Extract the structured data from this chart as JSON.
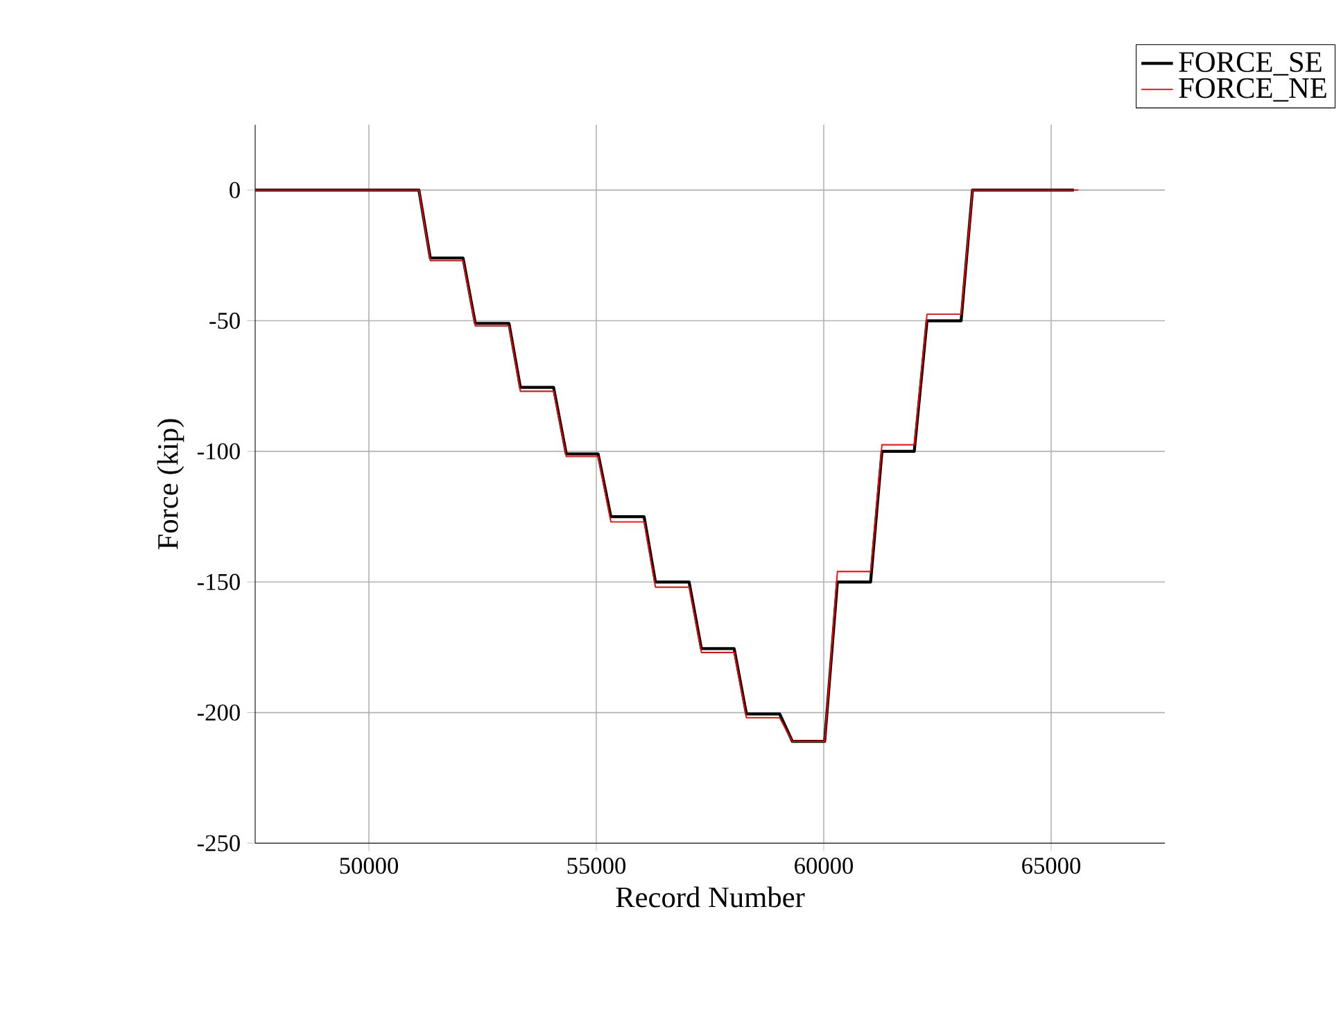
{
  "chart_data": {
    "type": "line",
    "xlabel": "Record Number",
    "ylabel": "Force (kip)",
    "xlim": [
      47500,
      67500
    ],
    "ylim": [
      -250,
      25
    ],
    "xticks": [
      50000,
      55000,
      60000,
      65000
    ],
    "yticks": [
      -250,
      -200,
      -150,
      -100,
      -50,
      0
    ],
    "grid": true,
    "legend": "top right",
    "line_style": "solid",
    "marker": "none",
    "series": [
      {
        "name": "FORCE_SE",
        "color": "#000000",
        "x": [
          47500,
          51100,
          51350,
          52070,
          52340,
          53080,
          53330,
          54060,
          54340,
          55040,
          55320,
          56050,
          56300,
          57040,
          57310,
          58030,
          58300,
          59030,
          59310,
          60020,
          60300,
          61030,
          61280,
          61990,
          62270,
          63020,
          63270,
          65500
        ],
        "values": [
          0,
          0,
          -26,
          -26,
          -51,
          -51,
          -75.5,
          -75.5,
          -101,
          -101,
          -125,
          -125,
          -150,
          -150,
          -175.5,
          -175.5,
          -200.5,
          -200.5,
          -211,
          -211,
          -150,
          -150,
          -100,
          -100,
          -50,
          -50,
          0,
          0
        ]
      },
      {
        "name": "FORCE_NE",
        "color": "#ff0000",
        "x": [
          47500,
          51100,
          51350,
          52070,
          52340,
          53080,
          53330,
          54060,
          54340,
          55040,
          55320,
          56050,
          56300,
          57040,
          57310,
          58030,
          58300,
          59030,
          59310,
          60020,
          60300,
          61030,
          61280,
          61990,
          62270,
          63020,
          63270,
          65600
        ],
        "values": [
          0,
          0,
          -27,
          -27,
          -52,
          -52,
          -77,
          -77,
          -102,
          -102,
          -127,
          -127,
          -152,
          -152,
          -177,
          -177,
          -202,
          -202,
          -211,
          -211,
          -146,
          -146,
          -97.5,
          -97.5,
          -47.5,
          -47.5,
          0,
          0
        ]
      }
    ]
  }
}
